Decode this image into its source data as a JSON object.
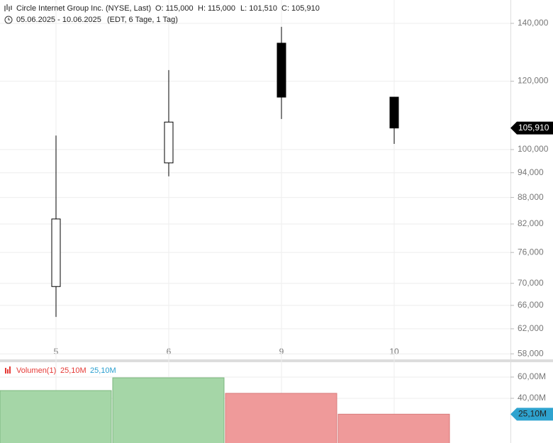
{
  "header": {
    "title": "Circle Internet Group Inc. (NYSE, Last)",
    "ohlc": [
      "O: 115,000",
      "H: 115,000",
      "L: 101,510",
      "C: 105,910"
    ],
    "range": "05.06.2025 - 10.06.2025",
    "info": "(EDT, 6 Tage, 1 Tag)"
  },
  "chart_data": [
    {
      "type": "candlestick",
      "categories": [
        "5",
        "6",
        "9",
        "10"
      ],
      "open": [
        69400,
        96500,
        132800,
        115000
      ],
      "high": [
        103800,
        123600,
        138700,
        115000
      ],
      "low": [
        64000,
        93100,
        108500,
        101510
      ],
      "close": [
        83100,
        107600,
        115000,
        105910
      ],
      "up_color": "#ffffff",
      "down_color": "#000000",
      "log_scale": true,
      "grid": true,
      "ylim": [
        57150,
        149000
      ],
      "yticks": [
        {
          "value": 58000,
          "label": "58,000"
        },
        {
          "value": 62000,
          "label": "62,000"
        },
        {
          "value": 66000,
          "label": "66,000"
        },
        {
          "value": 70000,
          "label": "70,000"
        },
        {
          "value": 76000,
          "label": "76,000"
        },
        {
          "value": 82000,
          "label": "82,000"
        },
        {
          "value": 88000,
          "label": "88,000"
        },
        {
          "value": 94000,
          "label": "94,000"
        },
        {
          "value": 100000,
          "label": "100,000"
        },
        {
          "value": 120000,
          "label": "120,000"
        },
        {
          "value": 140000,
          "label": "140,000"
        }
      ],
      "last_label": {
        "value": 105910,
        "label": "105,910"
      }
    },
    {
      "type": "bar",
      "name": "Volumen(1)",
      "legend_values": [
        "25,10M",
        "25,10M"
      ],
      "values": [
        47.3,
        59.3,
        44.7,
        25.1
      ],
      "up_color": "#a5d6a7",
      "down_color": "#ef9a9a",
      "grid": true,
      "ylim": [
        0,
        73.3
      ],
      "yticks": [
        {
          "value": 40,
          "label": "40,00M"
        },
        {
          "value": 60,
          "label": "60,00M"
        }
      ],
      "last_label": {
        "value": 25.1,
        "label": "25,10M"
      }
    }
  ]
}
